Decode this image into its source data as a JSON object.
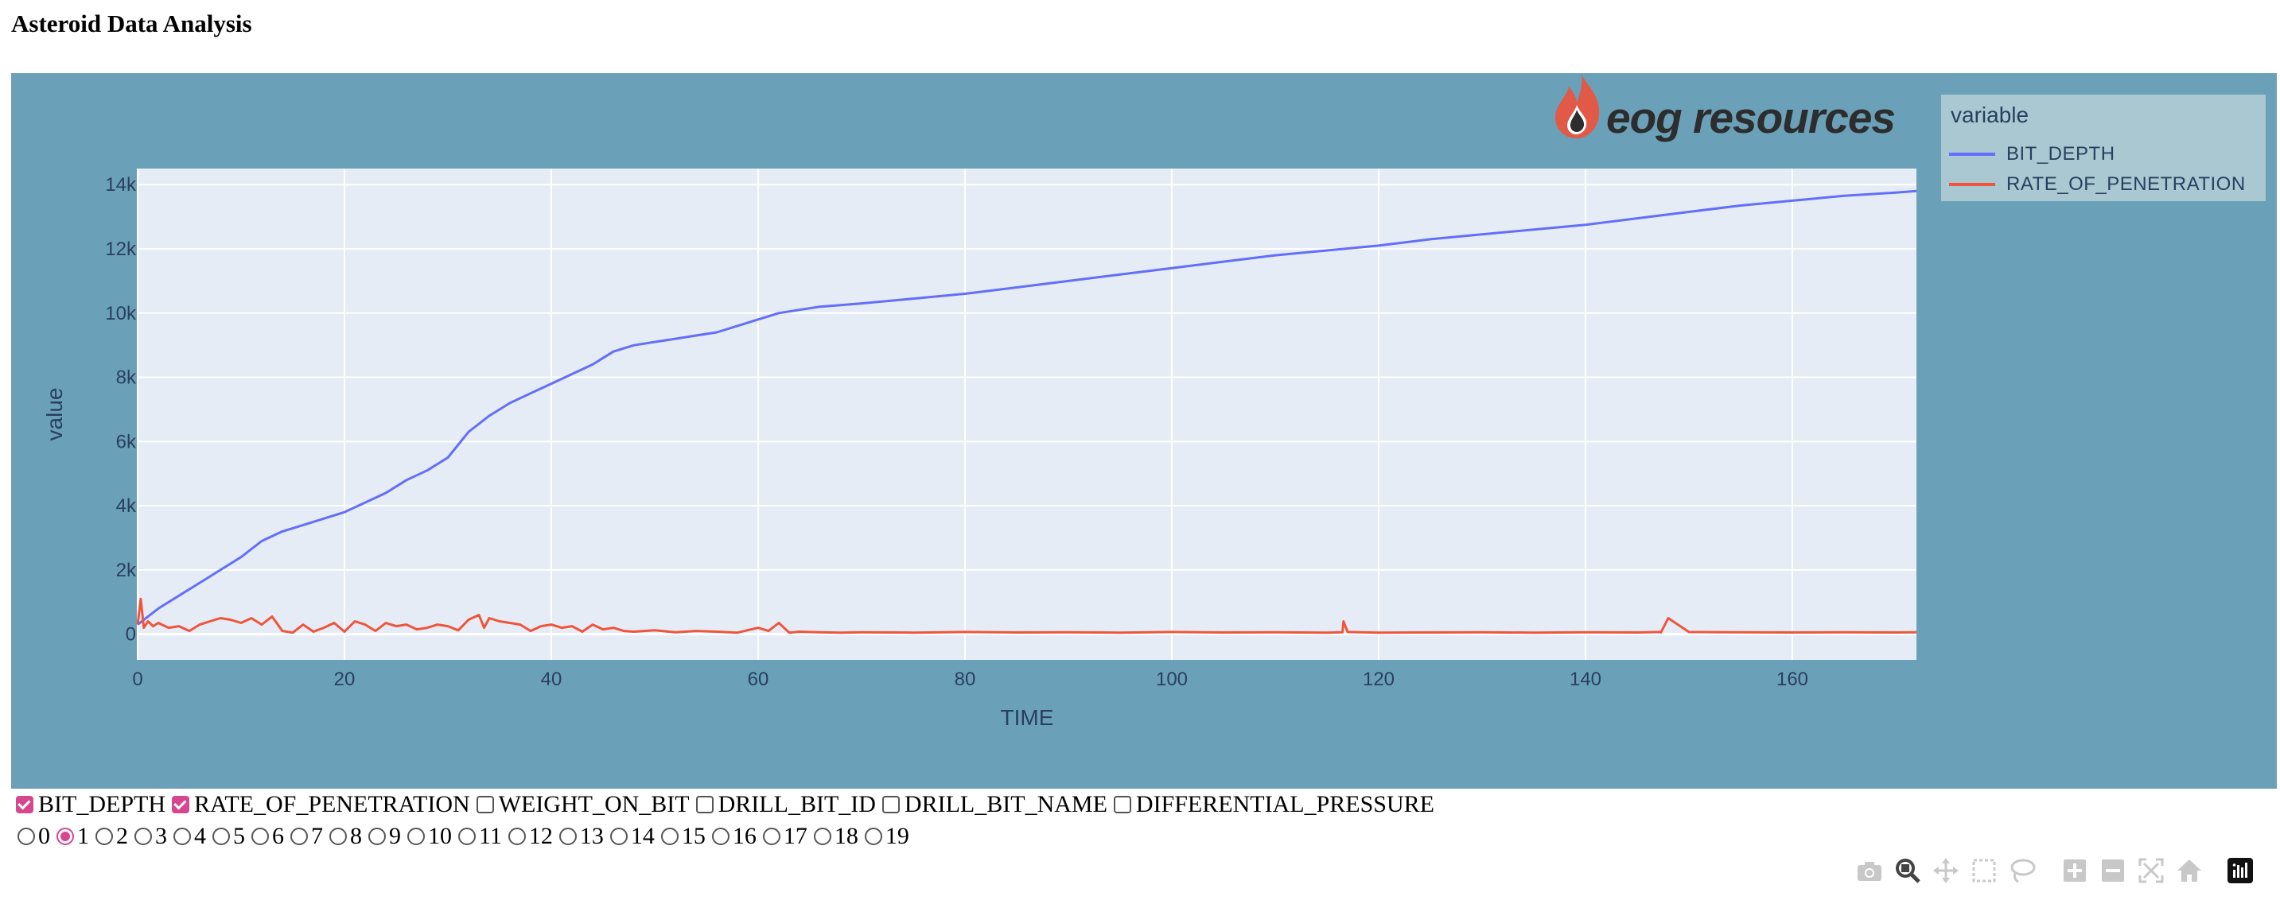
{
  "page": {
    "title": "Asteroid Data Analysis"
  },
  "logo": {
    "text": "eog resources",
    "flame_color": "#e05a47",
    "drop_color": "#2d2d2d"
  },
  "legend": {
    "title": "variable",
    "items": [
      {
        "label": "BIT_DEPTH",
        "color": "#636efa"
      },
      {
        "label": "RATE_OF_PENETRATION",
        "color": "#ef553b"
      }
    ]
  },
  "chart_data": {
    "type": "line",
    "xlabel": "TIME",
    "ylabel": "value",
    "xlim": [
      0,
      172
    ],
    "ylim": [
      -800,
      14500
    ],
    "x_ticks": [
      0,
      20,
      40,
      60,
      80,
      100,
      120,
      140,
      160
    ],
    "x_tick_labels": [
      "0",
      "20",
      "40",
      "60",
      "80",
      "100",
      "120",
      "140",
      "160"
    ],
    "y_ticks": [
      0,
      2000,
      4000,
      6000,
      8000,
      10000,
      12000,
      14000
    ],
    "y_tick_labels": [
      "0",
      "2k",
      "4k",
      "6k",
      "8k",
      "10k",
      "12k",
      "14k"
    ],
    "grid": true,
    "legend_position": "right",
    "plot_background": "#e5ecf6",
    "paper_background": "#6aa1b9",
    "series": [
      {
        "name": "BIT_DEPTH",
        "color": "#636efa",
        "x": [
          0,
          2,
          4,
          6,
          8,
          10,
          12,
          14,
          16,
          18,
          20,
          22,
          24,
          26,
          28,
          30,
          32,
          34,
          36,
          38,
          40,
          42,
          44,
          46,
          48,
          50,
          52,
          54,
          56,
          58,
          60,
          62,
          64,
          66,
          68,
          70,
          75,
          80,
          85,
          90,
          95,
          100,
          105,
          110,
          115,
          120,
          125,
          130,
          135,
          140,
          145,
          150,
          155,
          160,
          165,
          170,
          172
        ],
        "y": [
          300,
          800,
          1200,
          1600,
          2000,
          2400,
          2900,
          3200,
          3400,
          3600,
          3800,
          4100,
          4400,
          4800,
          5100,
          5500,
          6300,
          6800,
          7200,
          7500,
          7800,
          8100,
          8400,
          8800,
          9000,
          9100,
          9200,
          9300,
          9400,
          9600,
          9800,
          10000,
          10100,
          10200,
          10250,
          10300,
          10450,
          10600,
          10800,
          11000,
          11200,
          11400,
          11600,
          11800,
          11950,
          12100,
          12300,
          12450,
          12600,
          12750,
          12950,
          13150,
          13350,
          13500,
          13650,
          13750,
          13800
        ]
      },
      {
        "name": "RATE_OF_PENETRATION",
        "color": "#ef553b",
        "x": [
          0,
          0.3,
          0.6,
          1,
          1.5,
          2,
          3,
          4,
          5,
          6,
          7,
          8,
          9,
          10,
          11,
          12,
          13,
          14,
          15,
          16,
          17,
          18,
          19,
          20,
          21,
          22,
          23,
          24,
          25,
          26,
          27,
          28,
          29,
          30,
          31,
          32,
          33,
          33.5,
          34,
          35,
          36,
          37,
          38,
          39,
          40,
          41,
          42,
          43,
          44,
          45,
          46,
          47,
          48,
          50,
          52,
          54,
          56,
          58,
          60,
          61,
          62,
          63,
          64,
          66,
          68,
          70,
          75,
          80,
          85,
          90,
          95,
          100,
          105,
          110,
          115,
          116.5,
          116.6,
          117,
          120,
          125,
          130,
          135,
          140,
          145,
          147.2,
          147.3,
          148,
          150,
          155,
          160,
          165,
          170,
          172
        ],
        "y": [
          300,
          1100,
          200,
          400,
          250,
          350,
          200,
          250,
          100,
          300,
          400,
          500,
          450,
          350,
          500,
          300,
          550,
          100,
          50,
          300,
          80,
          200,
          350,
          80,
          400,
          300,
          100,
          350,
          250,
          300,
          150,
          200,
          300,
          250,
          120,
          450,
          600,
          200,
          500,
          400,
          350,
          300,
          100,
          250,
          300,
          200,
          250,
          80,
          300,
          150,
          200,
          100,
          80,
          120,
          60,
          100,
          80,
          50,
          200,
          100,
          350,
          50,
          80,
          60,
          50,
          60,
          50,
          70,
          55,
          60,
          50,
          70,
          55,
          60,
          50,
          60,
          400,
          70,
          50,
          55,
          60,
          50,
          60,
          55,
          70,
          60,
          500,
          70,
          60,
          55,
          60,
          55,
          60
        ]
      }
    ]
  },
  "checkboxes": [
    {
      "label": "BIT_DEPTH",
      "checked": true
    },
    {
      "label": "RATE_OF_PENETRATION",
      "checked": true
    },
    {
      "label": "WEIGHT_ON_BIT",
      "checked": false
    },
    {
      "label": "DRILL_BIT_ID",
      "checked": false
    },
    {
      "label": "DRILL_BIT_NAME",
      "checked": false
    },
    {
      "label": "DIFFERENTIAL_PRESSURE",
      "checked": false
    }
  ],
  "radios": {
    "selected": "1",
    "options": [
      "0",
      "1",
      "2",
      "3",
      "4",
      "5",
      "6",
      "7",
      "8",
      "9",
      "10",
      "11",
      "12",
      "13",
      "14",
      "15",
      "16",
      "17",
      "18",
      "19"
    ]
  },
  "modebar": {
    "icons": [
      "camera-icon",
      "zoom-icon",
      "pan-icon",
      "box-select-icon",
      "lasso-icon",
      "zoom-in-icon",
      "zoom-out-icon",
      "autoscale-icon",
      "reset-axes-icon",
      "plotly-logo-icon"
    ],
    "active": "zoom-icon"
  }
}
